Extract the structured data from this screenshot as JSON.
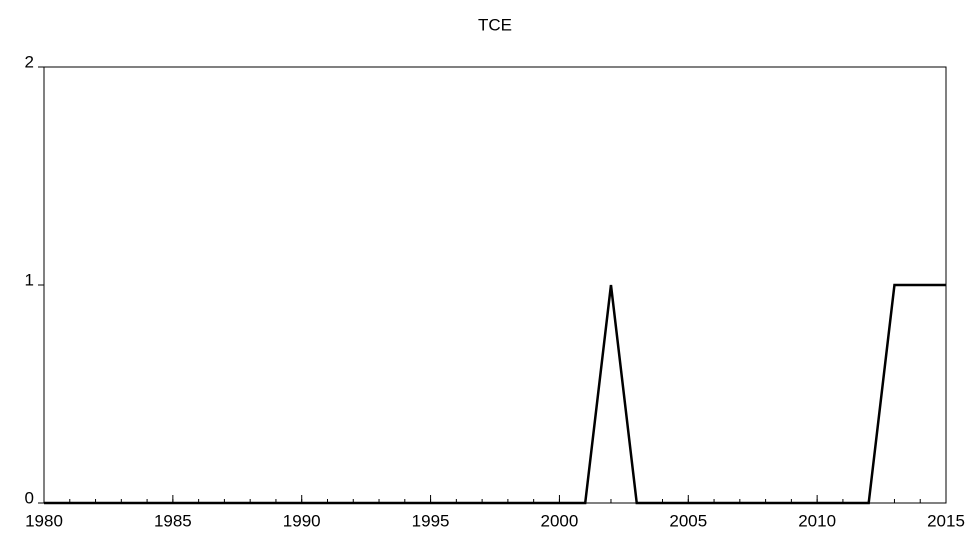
{
  "chart_data": {
    "type": "line",
    "title": "TCE",
    "x": [
      1980,
      1981,
      1982,
      1983,
      1984,
      1985,
      1986,
      1987,
      1988,
      1989,
      1990,
      1991,
      1992,
      1993,
      1994,
      1995,
      1996,
      1997,
      1998,
      1999,
      2000,
      2001,
      2002,
      2003,
      2004,
      2005,
      2006,
      2007,
      2008,
      2009,
      2010,
      2011,
      2012,
      2013,
      2014,
      2015
    ],
    "series": [
      {
        "name": "TCE",
        "color": "#000000",
        "values": [
          0,
          0,
          0,
          0,
          0,
          0,
          0,
          0,
          0,
          0,
          0,
          0,
          0,
          0,
          0,
          0,
          0,
          0,
          0,
          0,
          0,
          0,
          1,
          0,
          0,
          0,
          0,
          0,
          0,
          0,
          0,
          0,
          0,
          1,
          1,
          1
        ]
      }
    ],
    "xlim": [
      1980,
      2015
    ],
    "xticks": [
      1980,
      1985,
      1990,
      1995,
      2000,
      2005,
      2010,
      2015
    ],
    "ylim": [
      0,
      2
    ],
    "yticks": [
      0,
      1,
      2
    ],
    "grid": false
  }
}
